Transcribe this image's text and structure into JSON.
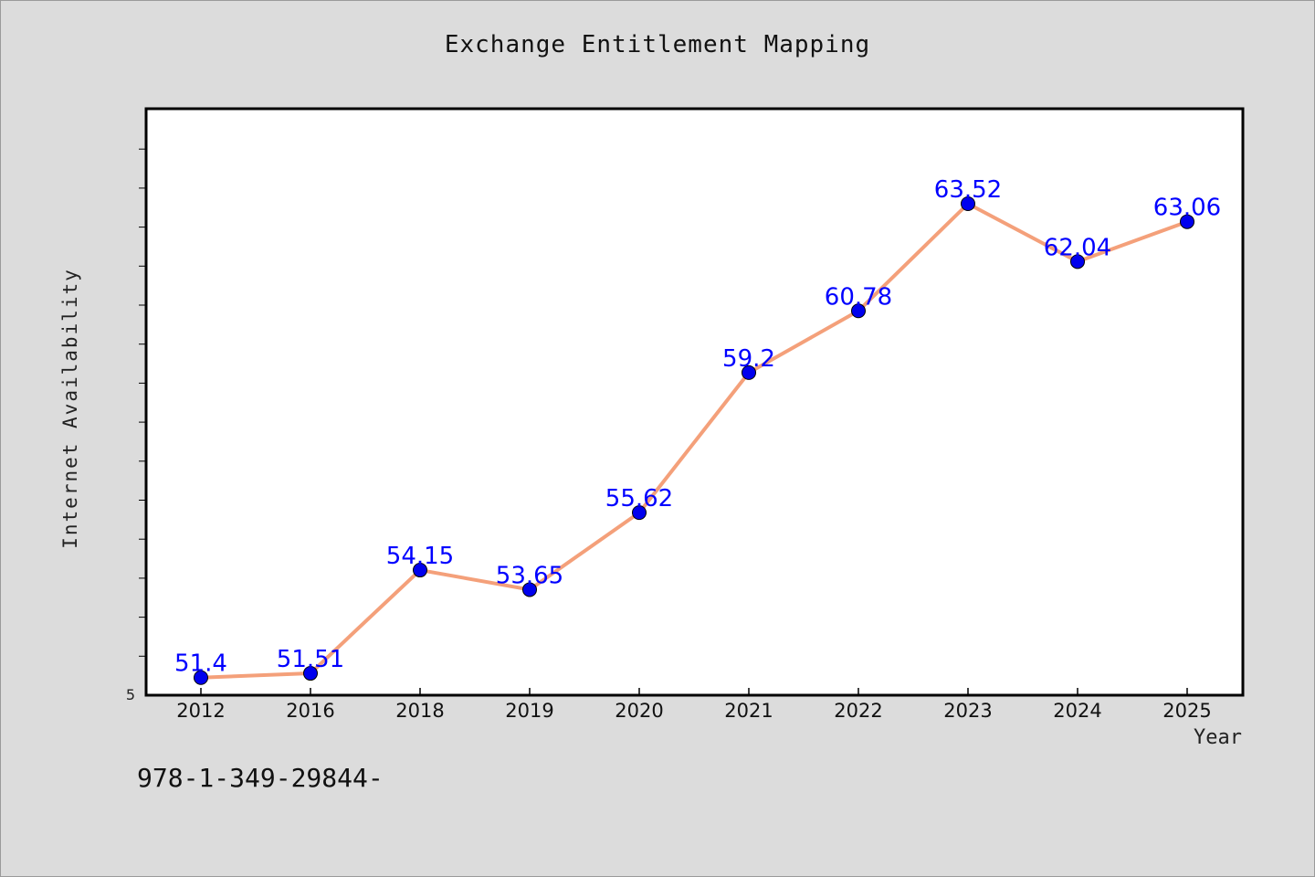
{
  "chart_data": {
    "type": "line",
    "title": "Exchange Entitlement Mapping",
    "xlabel": "Year",
    "ylabel": "Internet Availability",
    "categories": [
      "2012",
      "2016",
      "2018",
      "2019",
      "2020",
      "2021",
      "2022",
      "2023",
      "2024",
      "2025"
    ],
    "series": [
      {
        "values": [
          51.4,
          51.51,
          54.15,
          53.65,
          55.62,
          59.2,
          60.78,
          63.52,
          62.04,
          63.06
        ],
        "data_labels": [
          "51.4",
          "51.51",
          "54.15",
          "53.65",
          "55.62",
          "59.2",
          "60.78",
          "63.52",
          "62.04",
          "63.06"
        ]
      }
    ],
    "y_tick_labels": [
      "5"
    ],
    "ylim": [
      50.95,
      65.95
    ],
    "grid": false,
    "legend": "none",
    "colors": {
      "line": "#f4a07a",
      "marker": "#0000ee",
      "data_label": "#0000ff"
    }
  },
  "footer": {
    "identifier": "978-1-349-29844-"
  }
}
